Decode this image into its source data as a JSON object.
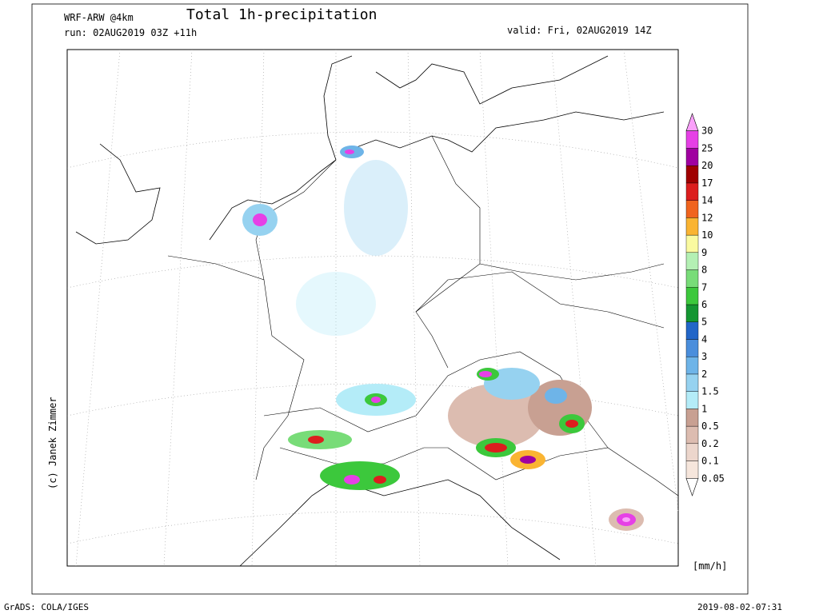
{
  "header": {
    "model": "WRF-ARW @4km",
    "title": "Total 1h-precipitation",
    "run": "run: 02AUG2019 03Z +11h",
    "valid": "valid: Fri, 02AUG2019 14Z"
  },
  "side_credit": "(c) Janek Zimmer",
  "colorbar": {
    "unit": "[mm/h]",
    "levels": [
      {
        "label": "0.05",
        "color": "#f6e6dc"
      },
      {
        "label": "0.1",
        "color": "#ecd6cc"
      },
      {
        "label": "0.2",
        "color": "#dcbcb0"
      },
      {
        "label": "0.5",
        "color": "#c8a092"
      },
      {
        "label": "1",
        "color": "#b4ecf8"
      },
      {
        "label": "1.5",
        "color": "#96d2f0"
      },
      {
        "label": "2",
        "color": "#6eb4e8"
      },
      {
        "label": "3",
        "color": "#4a8edc"
      },
      {
        "label": "4",
        "color": "#2266c8"
      },
      {
        "label": "5",
        "color": "#149632"
      },
      {
        "label": "6",
        "color": "#3cc83c"
      },
      {
        "label": "7",
        "color": "#78dc78"
      },
      {
        "label": "8",
        "color": "#b4f0b4"
      },
      {
        "label": "9",
        "color": "#fafaa0"
      },
      {
        "label": "10",
        "color": "#fab432"
      },
      {
        "label": "12",
        "color": "#f0641e"
      },
      {
        "label": "14",
        "color": "#dc1e1e"
      },
      {
        "label": "17",
        "color": "#a00000"
      },
      {
        "label": "20",
        "color": "#a000a0"
      },
      {
        "label": "25",
        "color": "#e640e6"
      },
      {
        "label": "30",
        "color": "#faa0fa"
      }
    ]
  },
  "footer": {
    "left": "GrADS: COLA/IGES",
    "right": "2019-08-02-07:31"
  }
}
